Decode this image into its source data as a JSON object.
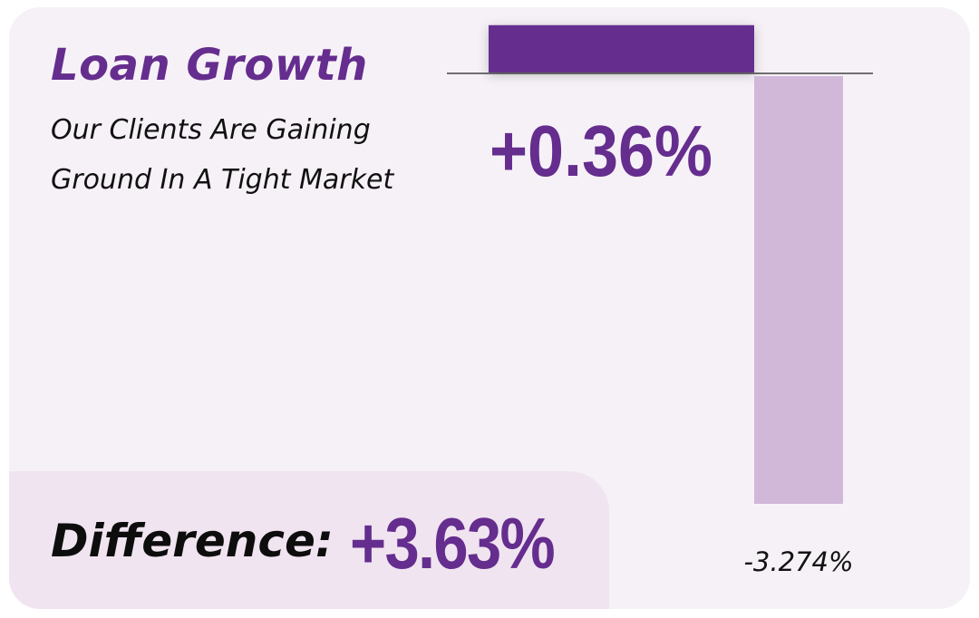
{
  "card": {
    "title": "Loan Growth",
    "subtitle_line1": "Our Clients Are Gaining",
    "subtitle_line2": "Ground In A Tight Market"
  },
  "difference": {
    "label": "Difference:",
    "value": "+3.63%"
  },
  "colors": {
    "card_background": "#f6f1f7",
    "panel_background": "#f0e4f0",
    "accent": "#652d8e",
    "bar_positive": "#652d8e",
    "bar_negative": "#d1b8d9",
    "text": "#111111"
  },
  "chart_data": {
    "type": "bar",
    "categories": [
      "",
      ""
    ],
    "values": [
      0.36,
      -3.274
    ],
    "data_labels": [
      "+0.36%",
      "-3.274%"
    ],
    "title": "",
    "xlabel": "",
    "ylabel": "",
    "ylim": [
      -3.274,
      0.36
    ],
    "grid": false,
    "legend": "none"
  }
}
